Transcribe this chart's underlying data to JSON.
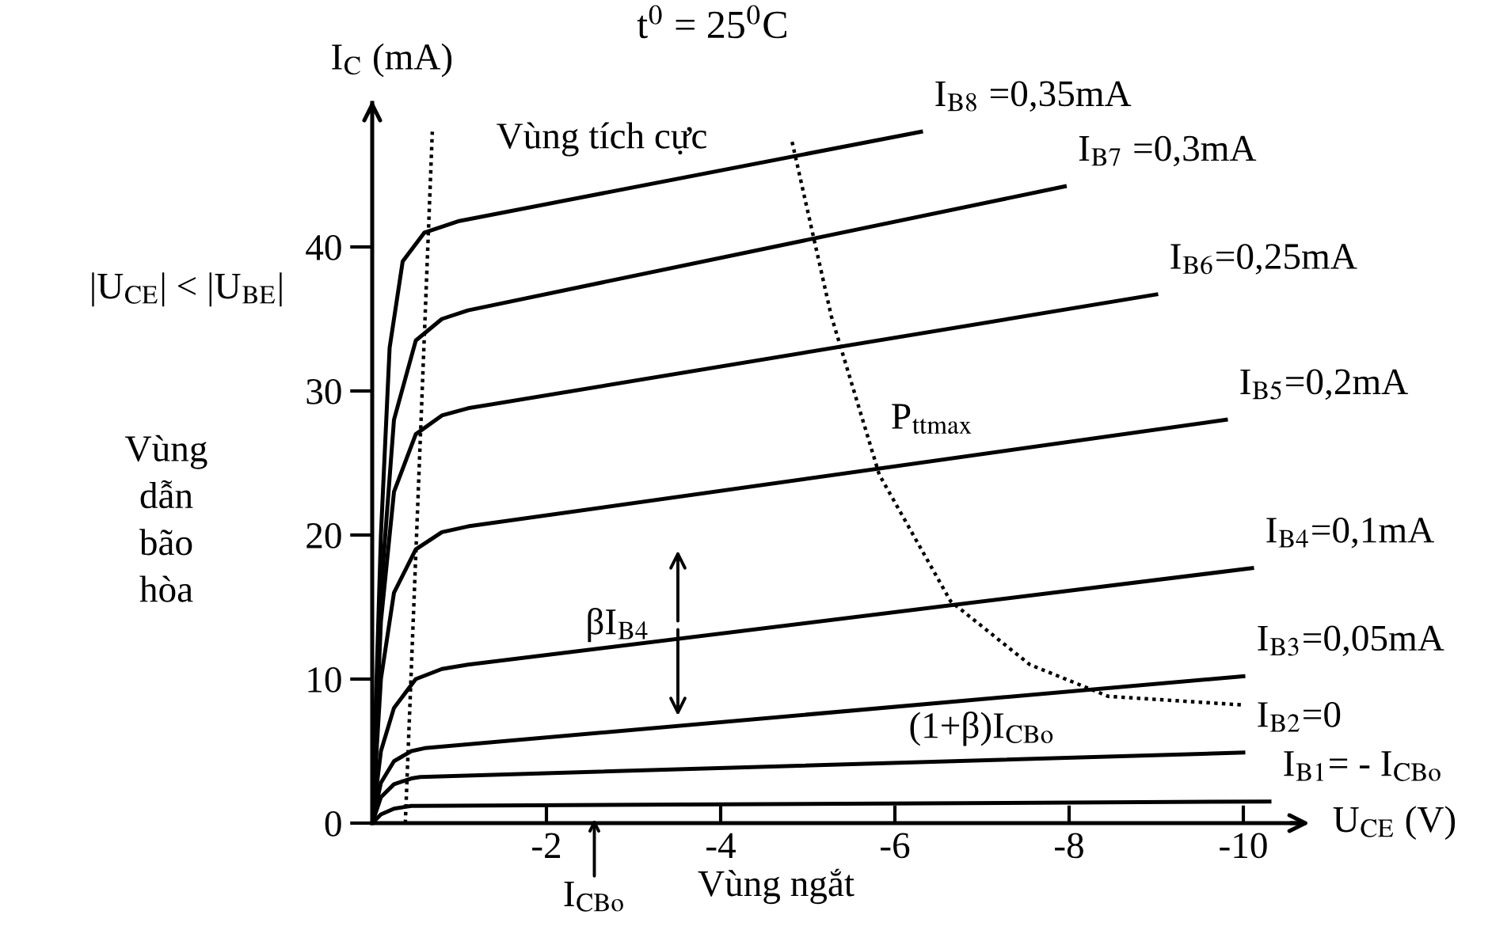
{
  "chart_data": {
    "type": "line",
    "title": "t$^{0}$ = 25$^{0}$C",
    "xlabel": "U$_{CE}$ (V)",
    "ylabel": "I$_{C}$ (mA)",
    "xlim": [
      0,
      -10.6
    ],
    "ylim": [
      0,
      50
    ],
    "xticks": [
      -2,
      -4,
      -6,
      -8,
      -10
    ],
    "yticks": [
      0,
      10,
      20,
      30,
      40
    ],
    "grid": false,
    "legend": false,
    "marker": "none",
    "series": [
      {
        "name": "I$_{B8}$ =0,35mA",
        "color": "#000000",
        "x": [
          0,
          -0.1,
          -0.2,
          -0.35,
          -0.6,
          -1.0,
          -6.3
        ],
        "values": [
          0,
          20,
          33,
          39,
          41,
          41.8,
          48.0
        ]
      },
      {
        "name": "I$_{B7}$ =0,3mA",
        "color": "#000000",
        "x": [
          0,
          -0.1,
          -0.25,
          -0.5,
          -0.8,
          -1.1,
          -7.95
        ],
        "values": [
          0,
          16,
          28,
          33.5,
          35,
          35.6,
          44.2
        ]
      },
      {
        "name": "I$_{B6}$=0,25mA",
        "color": "#000000",
        "x": [
          0,
          -0.1,
          -0.25,
          -0.5,
          -0.8,
          -1.1,
          -9.0
        ],
        "values": [
          0,
          14,
          23,
          27,
          28.3,
          28.8,
          36.7
        ]
      },
      {
        "name": "I$_{B5}$=0,2mA",
        "color": "#000000",
        "x": [
          0,
          -0.1,
          -0.25,
          -0.5,
          -0.8,
          -1.1,
          -9.8
        ],
        "values": [
          0,
          10,
          16,
          19,
          20.2,
          20.6,
          28.0
        ]
      },
      {
        "name": "I$_{B4}$=0,1mA",
        "color": "#000000",
        "x": [
          0,
          -0.1,
          -0.25,
          -0.5,
          -0.8,
          -1.1,
          -10.1
        ],
        "values": [
          0,
          5,
          8,
          10,
          10.7,
          11,
          17.7
        ]
      },
      {
        "name": "I$_{B3}$=0,05mA",
        "color": "#000000",
        "x": [
          0,
          -0.1,
          -0.25,
          -0.45,
          -0.6,
          -10.0
        ],
        "values": [
          0,
          2.8,
          4.3,
          5,
          5.2,
          10.2
        ]
      },
      {
        "name": "I$_{B2}$=0",
        "color": "#000000",
        "x": [
          0,
          -0.1,
          -0.25,
          -0.45,
          -0.55,
          -10.0
        ],
        "values": [
          0,
          1.8,
          2.7,
          3.1,
          3.2,
          4.9
        ]
      },
      {
        "name": "I$_{B1}$= - I$_{CBo}$",
        "color": "#000000",
        "x": [
          0,
          -0.1,
          -0.25,
          -0.45,
          -0.5,
          -10.3
        ],
        "values": [
          0,
          0.6,
          1.0,
          1.2,
          1.2,
          1.5
        ]
      },
      {
        "color": "#000000",
        "line_style": "dotted",
        "x": [
          -0.38,
          -0.69
        ],
        "values": [
          0,
          48
        ]
      },
      {
        "color": "#000000",
        "line_style": "dotted",
        "x": [
          -4.82,
          -5.27,
          -5.82,
          -6.64,
          -7.55,
          -8.45,
          -10.0
        ],
        "values": [
          47.3,
          35.2,
          24.2,
          15.4,
          11.0,
          8.8,
          8.2
        ]
      }
    ],
    "annotations": [
      {
        "text": "P$_{ttmax}$",
        "x": -5.6,
        "y": 28
      },
      "βI$_{B4}$",
      {
        "text": "(1+β)I$_{CBo}$",
        "x": -7.0,
        "y": 1.5
      },
      {
        "text": "I$_{CBo}$",
        "x": -2.55,
        "y": 0.6
      },
      "Vùng tích cực",
      "|U$_{CE}$| < |U$_{BE}$|",
      "Vùng\ndẫn\nbão\nhòa",
      "Vùng ngắt"
    ]
  }
}
